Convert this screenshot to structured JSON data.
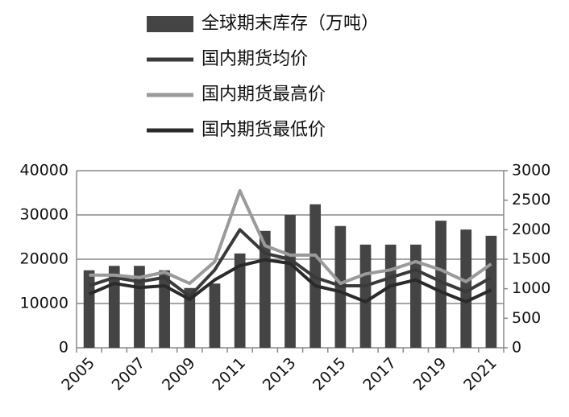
{
  "chart_data": {
    "type": "bar",
    "categories": [
      "2005",
      null,
      "2007",
      null,
      "2009",
      null,
      "2011",
      null,
      "2013",
      null,
      "2015",
      null,
      "2017",
      null,
      "2019",
      null,
      "2021"
    ],
    "series": [
      {
        "name": "全球期末库存（万吨）",
        "type": "bar",
        "color": "#444444",
        "values": [
          17500,
          18500,
          18500,
          17500,
          13500,
          14500,
          21300,
          26400,
          30000,
          32400,
          27500,
          23300,
          23300,
          23300,
          28700,
          26700,
          25300
        ]
      },
      {
        "name": "国内期货均价",
        "type": "line",
        "axis": "y2",
        "color": "#3a3a3a",
        "values": [
          1050,
          1190,
          1120,
          1190,
          870,
          1320,
          2000,
          1600,
          1500,
          1190,
          1050,
          1050,
          1190,
          1320,
          1120,
          950,
          1190
        ]
      },
      {
        "name": "国内期货最高价",
        "type": "line",
        "axis": "y2",
        "color": "#9a9a9a",
        "values": [
          1230,
          1230,
          1190,
          1280,
          1090,
          1460,
          2660,
          1730,
          1570,
          1570,
          1090,
          1250,
          1320,
          1460,
          1320,
          1120,
          1420
        ]
      },
      {
        "name": "国内期货最低价",
        "type": "line",
        "axis": "y2",
        "color": "#2a2a2a",
        "values": [
          910,
          1090,
          1020,
          1050,
          820,
          1150,
          1390,
          1490,
          1430,
          1050,
          950,
          780,
          1050,
          1150,
          950,
          780,
          980
        ]
      }
    ],
    "ylim": [
      0,
      40000
    ],
    "yticks": [
      0,
      10000,
      20000,
      30000,
      40000
    ],
    "y2lim": [
      0,
      3000
    ],
    "y2ticks": [
      0,
      500,
      1000,
      1500,
      2000,
      2500,
      3000
    ],
    "grid": true
  }
}
